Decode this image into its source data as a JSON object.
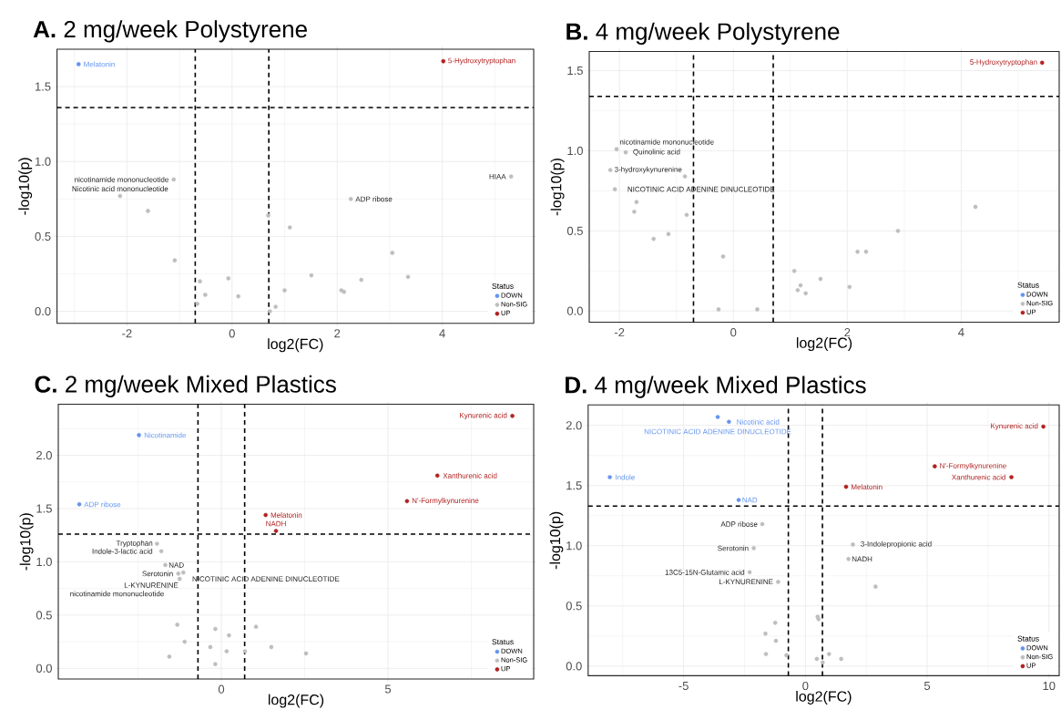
{
  "chart_data": [
    {
      "type": "scatter",
      "title": "**A.**  2 mg/week Polystyrene",
      "xlabel": "log2(FC)",
      "ylabel": "-log10(p)",
      "legend_title": "Status",
      "legend": "bottom right",
      "grid": true,
      "marker": "circle",
      "xlim": [
        -3.33,
        5.74
      ],
      "ylim": [
        -0.08,
        1.75
      ],
      "xticks": [
        -2,
        0,
        2,
        4
      ],
      "yticks": [
        {
          "value": 0,
          "label": "0.0"
        },
        {
          "value": 0.5,
          "label": "0.5"
        },
        {
          "value": 1,
          "label": "1.0"
        },
        {
          "value": 1.5,
          "label": "1.5"
        }
      ],
      "ref_lines": [
        {
          "axis": "x",
          "value": -0.7,
          "line_style": "dashed",
          "color": "#000000"
        },
        {
          "axis": "x",
          "value": 0.7,
          "line_style": "dashed",
          "color": "#000000"
        },
        {
          "axis": "y",
          "value": 1.36,
          "line_style": "dashed",
          "color": "#000000"
        }
      ],
      "series": [
        {
          "name": "DOWN",
          "color": "#6495ed",
          "x": [
            -2.92
          ],
          "values": [
            1.65
          ]
        },
        {
          "name": "Non-SIG",
          "color": "#bebebe",
          "x": [
            5.31,
            -1.11,
            -2.13,
            -1.6,
            0.69,
            1.1,
            2.26,
            -1.09,
            -0.61,
            -0.51,
            -0.66,
            -0.07,
            0.12,
            0.72,
            0.83,
            1.0,
            1.51,
            2.08,
            2.13,
            2.46,
            3.05,
            3.35
          ],
          "values": [
            0.9,
            0.88,
            0.77,
            0.67,
            0.64,
            0.56,
            0.75,
            0.34,
            0.2,
            0.11,
            0.05,
            0.22,
            0.1,
            0.0,
            0.03,
            0.14,
            0.24,
            0.14,
            0.13,
            0.21,
            0.39,
            0.23
          ]
        },
        {
          "name": "UP",
          "color": "#b22222",
          "x": [
            4.02
          ],
          "values": [
            1.67
          ]
        }
      ],
      "annotations": [
        {
          "text": "Melatonin",
          "x": -2.92,
          "y": 1.65
        },
        {
          "text": "5-Hydroxytryptophan",
          "x": 4.02,
          "y": 1.67
        },
        {
          "text": "HIAA",
          "x": 5.31,
          "y": 0.9
        },
        {
          "text": "nicotinamide mononucleotide",
          "x": -1.11,
          "y": 0.88
        },
        {
          "text": "Nicotinic acid mononucleotide",
          "x": -2.13,
          "y": 0.77
        },
        {
          "text": "ADP ribose",
          "x": 2.26,
          "y": 0.75
        }
      ]
    },
    {
      "type": "scatter",
      "title": "**B.**  4 mg/week Polystyrene",
      "xlabel": "log2(FC)",
      "ylabel": "-log10(p)",
      "legend_title": "Status",
      "legend": "bottom right",
      "grid": true,
      "marker": "circle",
      "xlim": [
        -2.53,
        5.72
      ],
      "ylim": [
        -0.07,
        1.62
      ],
      "xticks": [
        -2,
        0,
        2,
        4
      ],
      "yticks": [
        {
          "value": 0,
          "label": "0.0"
        },
        {
          "value": 0.5,
          "label": "0.5"
        },
        {
          "value": 1,
          "label": "1.0"
        },
        {
          "value": 1.5,
          "label": "1.5"
        }
      ],
      "ref_lines": [
        {
          "axis": "x",
          "value": -0.7,
          "line_style": "dashed",
          "color": "#000000"
        },
        {
          "axis": "x",
          "value": 0.7,
          "line_style": "dashed",
          "color": "#000000"
        },
        {
          "axis": "y",
          "value": 1.34,
          "line_style": "dashed",
          "color": "#000000"
        }
      ],
      "series": [
        {
          "name": "DOWN",
          "color": "#6495ed"
        },
        {
          "name": "Non-SIG",
          "color": "#bebebe",
          "x": [
            -2.05,
            -1.89,
            -2.16,
            -0.85,
            -2.08,
            -1.7,
            -1.74,
            -0.82,
            -1.4,
            -1.14,
            -0.18,
            -0.26,
            0.42,
            1.07,
            1.18,
            1.13,
            1.27,
            1.53,
            2.04,
            2.18,
            2.33,
            2.89,
            4.25
          ],
          "values": [
            1.01,
            0.99,
            0.88,
            0.84,
            0.76,
            0.68,
            0.62,
            0.6,
            0.45,
            0.48,
            0.34,
            0.01,
            0.01,
            0.25,
            0.16,
            0.13,
            0.11,
            0.2,
            0.15,
            0.37,
            0.37,
            0.5,
            0.65
          ]
        },
        {
          "name": "UP",
          "color": "#b22222",
          "x": [
            5.42
          ],
          "values": [
            1.55
          ]
        }
      ],
      "annotations": [
        {
          "text": "5-Hydroxytryptophan",
          "x": 5.42,
          "y": 1.55
        },
        {
          "text": "nicotinamide mononucleotide",
          "x": -2.05,
          "y": 1.01
        },
        {
          "text": "Quinolinic acid",
          "x": -1.89,
          "y": 0.99
        },
        {
          "text": "3-hydroxykynurenine",
          "x": -2.16,
          "y": 0.88
        },
        {
          "text": "NICOTINIC ACID ADENINE DINUCLEOTIDE",
          "x": -2.08,
          "y": 0.76
        }
      ]
    },
    {
      "type": "scatter",
      "title": "**C.**  2 mg/week Mixed Plastics",
      "xlabel": "log2(FC)",
      "ylabel": "-log10(p)",
      "legend_title": "Status",
      "legend": "bottom right",
      "grid": true,
      "marker": "circle",
      "xlim": [
        -4.89,
        9.37
      ],
      "ylim": [
        -0.1,
        2.48
      ],
      "xticks": [
        0,
        5
      ],
      "yticks": [
        {
          "value": 0,
          "label": "0.0"
        },
        {
          "value": 0.5,
          "label": "0.5"
        },
        {
          "value": 1,
          "label": "1.0"
        },
        {
          "value": 1.5,
          "label": "1.5"
        },
        {
          "value": 2,
          "label": "2.0"
        }
      ],
      "ref_lines": [
        {
          "axis": "x",
          "value": -0.7,
          "line_style": "dashed",
          "color": "#000000"
        },
        {
          "axis": "x",
          "value": 0.7,
          "line_style": "dashed",
          "color": "#000000"
        },
        {
          "axis": "y",
          "value": 1.26,
          "line_style": "dashed",
          "color": "#000000"
        }
      ],
      "series": [
        {
          "name": "DOWN",
          "color": "#6495ed",
          "x": [
            -2.47,
            -4.26
          ],
          "values": [
            2.19,
            1.54
          ]
        },
        {
          "name": "Non-SIG",
          "color": "#bebebe",
          "x": [
            -1.93,
            -1.8,
            -1.68,
            -1.29,
            -1.14,
            -1.25,
            -1.62,
            -1.32,
            -1.1,
            -1.56,
            -0.18,
            0.23,
            -0.33,
            0.16,
            -0.18,
            0.71,
            1.04,
            1.5,
            2.54
          ],
          "values": [
            1.17,
            1.1,
            0.97,
            0.89,
            0.9,
            0.84,
            0.77,
            0.41,
            0.25,
            0.11,
            0.37,
            0.31,
            0.2,
            0.16,
            0.04,
            0.16,
            0.39,
            0.2,
            0.14
          ]
        },
        {
          "name": "UP",
          "color": "#b22222",
          "x": [
            8.73,
            6.48,
            5.57,
            1.33,
            1.64
          ],
          "values": [
            2.37,
            1.81,
            1.57,
            1.44,
            1.29
          ]
        }
      ],
      "annotations": [
        {
          "text": "Nicotinamide",
          "x": -2.47,
          "y": 2.19
        },
        {
          "text": "ADP ribose",
          "x": -4.26,
          "y": 1.54
        },
        {
          "text": "Kynurenic acid",
          "x": 8.73,
          "y": 2.37
        },
        {
          "text": "Xanthurenic acid",
          "x": 6.48,
          "y": 1.81
        },
        {
          "text": "N'-Formylkynurenine",
          "x": 5.57,
          "y": 1.57
        },
        {
          "text": "Melatonin",
          "x": 1.33,
          "y": 1.44
        },
        {
          "text": "NADH",
          "x": 1.64,
          "y": 1.29
        },
        {
          "text": "Tryptophan",
          "x": -1.93,
          "y": 1.17
        },
        {
          "text": "Indole-3-lactic acid",
          "x": -1.8,
          "y": 1.1
        },
        {
          "text": "NAD",
          "x": -1.68,
          "y": 0.97
        },
        {
          "text": "Serotonin",
          "x": -1.29,
          "y": 0.89
        },
        {
          "text": "L-KYNURENINE",
          "x": -1.14,
          "y": 0.9
        },
        {
          "text": "NICOTINIC ACID ADENINE DINUCLEOTIDE",
          "x": -1.25,
          "y": 0.84
        },
        {
          "text": "nicotinamide mononucleotide",
          "x": -1.62,
          "y": 0.77
        }
      ]
    },
    {
      "type": "scatter",
      "title": "**D.**  4 mg/week Mixed Plastics",
      "xlabel": "log2(FC)",
      "ylabel": "-log10(p)",
      "legend_title": "Status",
      "legend": "bottom right",
      "grid": true,
      "marker": "circle",
      "xlim": [
        -8.92,
        10.42
      ],
      "ylim": [
        -0.08,
        2.17
      ],
      "xticks": [
        -5,
        0,
        5,
        10
      ],
      "yticks": [
        {
          "value": 0,
          "label": "0.0"
        },
        {
          "value": 0.5,
          "label": "0.5"
        },
        {
          "value": 1,
          "label": "1.0"
        },
        {
          "value": 1.5,
          "label": "1.5"
        },
        {
          "value": 2,
          "label": "2.0"
        }
      ],
      "ref_lines": [
        {
          "axis": "x",
          "value": -0.7,
          "line_style": "dashed",
          "color": "#000000"
        },
        {
          "axis": "x",
          "value": 0.7,
          "line_style": "dashed",
          "color": "#000000"
        },
        {
          "axis": "y",
          "value": 1.33,
          "line_style": "dashed",
          "color": "#000000"
        }
      ],
      "series": [
        {
          "name": "DOWN",
          "color": "#6495ed",
          "x": [
            -3.6,
            -3.14,
            -8.03,
            -2.74
          ],
          "values": [
            2.07,
            2.03,
            1.57,
            1.38
          ]
        },
        {
          "name": "Non-SIG",
          "color": "#bebebe",
          "x": [
            -1.77,
            -2.12,
            -2.29,
            -1.12,
            1.95,
            1.77,
            2.88,
            0.5,
            0.54,
            -1.24,
            -1.64,
            -1.21,
            -1.62,
            -0.78,
            0.47,
            0.97,
            1.47,
            0.71
          ],
          "values": [
            1.18,
            0.98,
            0.78,
            0.7,
            1.01,
            0.89,
            0.66,
            0.41,
            0.39,
            0.36,
            0.27,
            0.21,
            0.1,
            0.09,
            0.06,
            0.1,
            0.06,
            0.03
          ]
        },
        {
          "name": "UP",
          "color": "#b22222",
          "x": [
            9.77,
            5.31,
            8.46,
            1.67
          ],
          "values": [
            1.99,
            1.66,
            1.57,
            1.49
          ]
        }
      ],
      "annotations": [
        {
          "text": "NICOTINIC ACID ADENINE DINUCLEOTIDE",
          "x": -3.6,
          "y": 2.07
        },
        {
          "text": "Nicotinic acid",
          "x": -3.14,
          "y": 2.03
        },
        {
          "text": "Indole",
          "x": -8.03,
          "y": 1.57
        },
        {
          "text": "NAD",
          "x": -2.74,
          "y": 1.38
        },
        {
          "text": "Kynurenic acid",
          "x": 9.77,
          "y": 1.99
        },
        {
          "text": "N'-Formylkynurenine",
          "x": 5.31,
          "y": 1.66
        },
        {
          "text": "Xanthurenic acid",
          "x": 8.46,
          "y": 1.57
        },
        {
          "text": "Melatonin",
          "x": 1.67,
          "y": 1.49
        },
        {
          "text": "ADP ribose",
          "x": -1.77,
          "y": 1.18
        },
        {
          "text": "Serotonin",
          "x": -2.12,
          "y": 0.98
        },
        {
          "text": "13C5-15N-Glutamic acid",
          "x": -2.29,
          "y": 0.78
        },
        {
          "text": "L-KYNURENINE",
          "x": -1.12,
          "y": 0.7
        },
        {
          "text": "3-Indolepropionic acid",
          "x": 1.95,
          "y": 1.01
        },
        {
          "text": "NADH",
          "x": 1.77,
          "y": 0.89
        }
      ]
    }
  ]
}
